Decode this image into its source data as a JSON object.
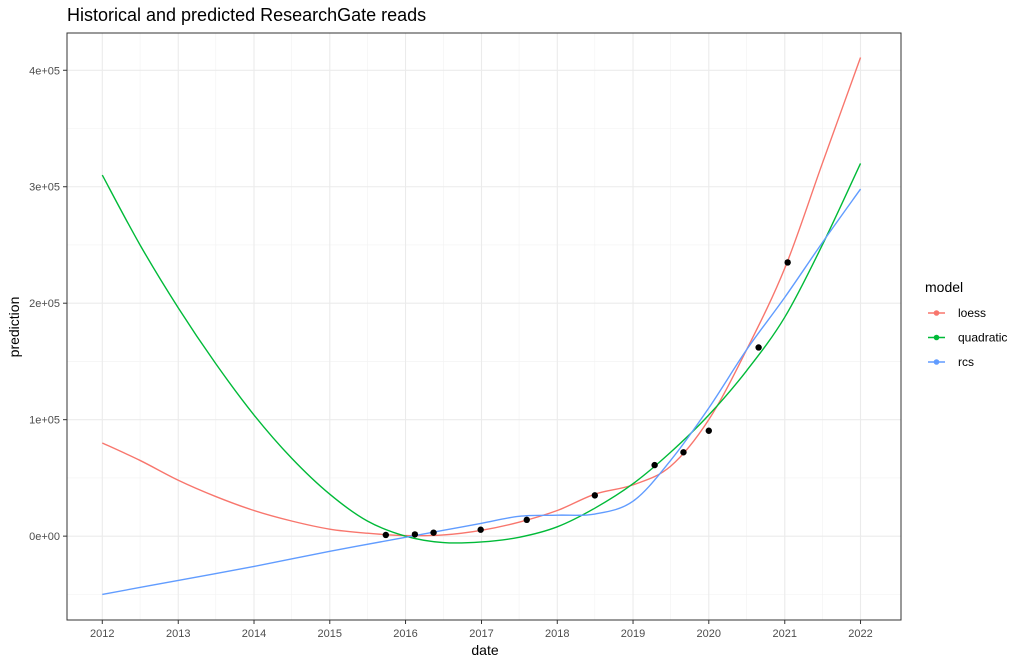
{
  "chart_data": {
    "type": "line",
    "title": "Historical and predicted ResearchGate reads",
    "xlabel": "date",
    "ylabel": "prediction",
    "xlim": [
      "2011-07-15",
      "2022-07-15"
    ],
    "ylim": [
      -72000,
      432000
    ],
    "x_ticks": [
      "2012",
      "2013",
      "2014",
      "2015",
      "2016",
      "2017",
      "2018",
      "2019",
      "2020",
      "2021",
      "2022"
    ],
    "y_ticks": [
      {
        "value": 0,
        "label": "0e+00"
      },
      {
        "value": 100000,
        "label": "1e+05"
      },
      {
        "value": 200000,
        "label": "2e+05"
      },
      {
        "value": 300000,
        "label": "3e+05"
      },
      {
        "value": 400000,
        "label": "4e+05"
      }
    ],
    "grid": true,
    "legend": {
      "title": "model",
      "position": "right"
    },
    "series": [
      {
        "name": "loess",
        "color": "#F8766D",
        "points": [
          [
            "2012-01-01",
            80000
          ],
          [
            "2012-07-01",
            65000
          ],
          [
            "2013-01-01",
            48000
          ],
          [
            "2013-07-01",
            34000
          ],
          [
            "2014-01-01",
            22000
          ],
          [
            "2014-07-01",
            13000
          ],
          [
            "2015-01-01",
            6000
          ],
          [
            "2015-07-01",
            2500
          ],
          [
            "2016-01-01",
            500
          ],
          [
            "2016-07-01",
            1000
          ],
          [
            "2017-01-01",
            5000
          ],
          [
            "2017-07-01",
            12000
          ],
          [
            "2018-01-01",
            22000
          ],
          [
            "2018-07-01",
            36000
          ],
          [
            "2019-01-01",
            44000
          ],
          [
            "2019-07-01",
            60000
          ],
          [
            "2020-01-01",
            100000
          ],
          [
            "2020-07-01",
            160000
          ],
          [
            "2021-01-01",
            230000
          ],
          [
            "2021-07-01",
            320000
          ],
          [
            "2022-01-01",
            411000
          ]
        ]
      },
      {
        "name": "quadratic",
        "color": "#00BA38",
        "points": [
          [
            "2012-01-01",
            310000
          ],
          [
            "2012-07-01",
            250000
          ],
          [
            "2013-01-01",
            196000
          ],
          [
            "2013-07-01",
            148000
          ],
          [
            "2014-01-01",
            104000
          ],
          [
            "2014-07-01",
            67000
          ],
          [
            "2015-01-01",
            36000
          ],
          [
            "2015-07-01",
            13000
          ],
          [
            "2016-01-01",
            0
          ],
          [
            "2016-07-01",
            -5500
          ],
          [
            "2017-01-01",
            -5000
          ],
          [
            "2017-07-01",
            -1000
          ],
          [
            "2018-01-01",
            8000
          ],
          [
            "2018-07-01",
            24000
          ],
          [
            "2019-01-01",
            45000
          ],
          [
            "2019-07-01",
            72000
          ],
          [
            "2020-01-01",
            104000
          ],
          [
            "2020-07-01",
            142000
          ],
          [
            "2021-01-01",
            188000
          ],
          [
            "2021-07-01",
            250000
          ],
          [
            "2022-01-01",
            320000
          ]
        ]
      },
      {
        "name": "rcs",
        "color": "#619CFF",
        "points": [
          [
            "2012-01-01",
            -50000
          ],
          [
            "2013-01-01",
            -38000
          ],
          [
            "2014-01-01",
            -26000
          ],
          [
            "2015-01-01",
            -13000
          ],
          [
            "2016-01-01",
            -1000
          ],
          [
            "2016-07-01",
            5000
          ],
          [
            "2017-01-01",
            11000
          ],
          [
            "2017-07-01",
            17000
          ],
          [
            "2018-01-01",
            18000
          ],
          [
            "2018-07-01",
            19000
          ],
          [
            "2019-01-01",
            30000
          ],
          [
            "2019-07-01",
            65000
          ],
          [
            "2020-01-01",
            110000
          ],
          [
            "2020-07-01",
            160000
          ],
          [
            "2021-01-01",
            205000
          ],
          [
            "2021-07-01",
            252000
          ],
          [
            "2022-01-01",
            298000
          ]
        ]
      }
    ],
    "observed": [
      [
        "2015-09-28",
        1000
      ],
      [
        "2016-02-15",
        1500
      ],
      [
        "2016-05-15",
        3000
      ],
      [
        "2016-12-28",
        5500
      ],
      [
        "2017-08-07",
        14000
      ],
      [
        "2018-07-01",
        35000
      ],
      [
        "2019-04-15",
        61000
      ],
      [
        "2019-09-01",
        72000
      ],
      [
        "2020-01-01",
        90500
      ],
      [
        "2020-08-28",
        162000
      ],
      [
        "2021-01-15",
        235000
      ]
    ]
  }
}
